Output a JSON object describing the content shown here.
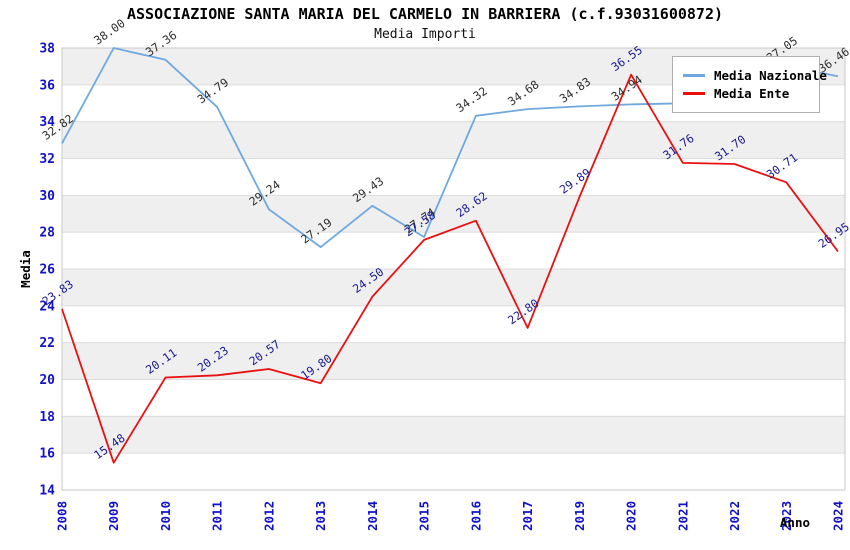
{
  "chart_data": {
    "type": "line",
    "title": "ASSOCIAZIONE SANTA MARIA DEL CARMELO IN BARRIERA (c.f.93031600872)",
    "subtitle": "Media Importi",
    "xlabel": "Anno",
    "ylabel": "Media",
    "x_categories": [
      "2008",
      "2009",
      "2010",
      "2011",
      "2012",
      "2013",
      "2014",
      "2015",
      "2016",
      "2017",
      "2019",
      "2020",
      "2021",
      "2022",
      "2023",
      "2024"
    ],
    "y_ticks": [
      38,
      36,
      34,
      32,
      30,
      28,
      26,
      24,
      22,
      20,
      18,
      16,
      14
    ],
    "ylim": [
      14,
      38
    ],
    "grid": "alternating-horizontal-bands",
    "legend_position": "top-right",
    "series": [
      {
        "name": "Media Nazionale",
        "color": "#6FA8E0",
        "label_color": "#2E2E2E",
        "values": [
          32.82,
          38.0,
          37.36,
          34.79,
          29.24,
          27.19,
          29.43,
          27.74,
          34.32,
          34.68,
          34.83,
          34.94,
          35.0,
          35.0,
          37.05,
          36.46
        ],
        "labels": [
          "32.82",
          "38.00",
          "37.36",
          "34.79",
          "29.24",
          "27.19",
          "29.43",
          "27.74",
          "34.32",
          "34.68",
          "34.83",
          "34.94",
          "",
          "",
          "37.05",
          "36.46"
        ]
      },
      {
        "name": "Media Ente",
        "color": "#EA1010",
        "label_color": "#1A1A8F",
        "values": [
          23.83,
          15.48,
          20.11,
          20.23,
          20.57,
          19.8,
          24.5,
          27.58,
          28.62,
          22.8,
          29.89,
          36.55,
          31.76,
          31.7,
          30.71,
          26.95
        ],
        "labels": [
          "23.83",
          "15.48",
          "20.11",
          "20.23",
          "20.57",
          "19.80",
          "24.50",
          "27.58",
          "28.62",
          "22.80",
          "29.89",
          "36.55",
          "31.76",
          "31.70",
          "30.71",
          "26.95"
        ]
      }
    ]
  },
  "colors": {
    "band_gray": "#EFEFEF",
    "gridline": "#DCDCDC",
    "plot_border": "#C8C8C8",
    "tick_label_blue": "#1111CC",
    "axis_title_black": "#000000"
  }
}
